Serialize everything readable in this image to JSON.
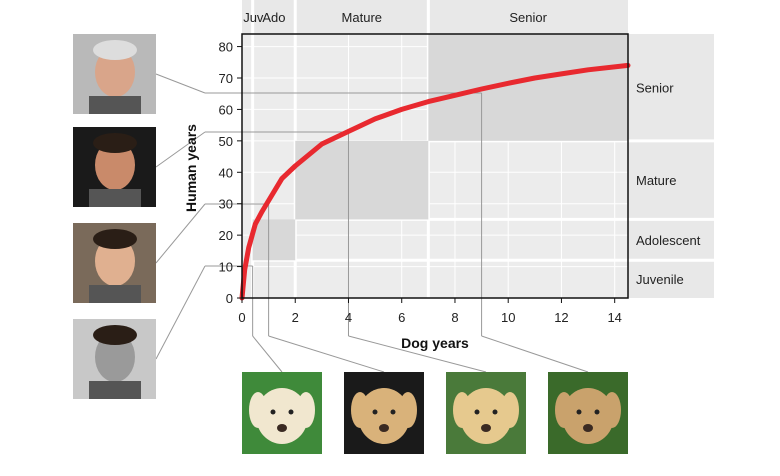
{
  "chart_data": {
    "type": "line",
    "xlabel": "Dog years",
    "ylabel": "Human years",
    "xlim": [
      0,
      14.5
    ],
    "ylim": [
      0,
      84
    ],
    "x_ticks": [
      0,
      2,
      4,
      6,
      8,
      10,
      12,
      14
    ],
    "y_ticks": [
      0,
      10,
      20,
      30,
      40,
      50,
      60,
      70,
      80
    ],
    "grid": true,
    "series": [
      {
        "color": "#e8292f",
        "x": [
          0,
          0.1,
          0.25,
          0.5,
          0.75,
          1,
          1.5,
          2,
          3,
          4,
          5,
          6,
          7,
          8,
          9,
          10,
          11,
          12,
          13,
          14.5
        ],
        "y": [
          0,
          9,
          16,
          23.5,
          27.5,
          31,
          38,
          42,
          49,
          53,
          57,
          60,
          62.5,
          64.5,
          66.5,
          68.3,
          70,
          71.3,
          72.6,
          74
        ]
      }
    ],
    "stages": [
      {
        "top_label": "Juv",
        "side_label": "Juvenile",
        "x_range": [
          0,
          0.4
        ],
        "y_range": [
          0,
          12
        ]
      },
      {
        "top_label": "Ado",
        "side_label": "Adolescent",
        "x_range": [
          0.4,
          2
        ],
        "y_range": [
          12,
          25
        ]
      },
      {
        "top_label": "Mature",
        "side_label": "Mature",
        "x_range": [
          2,
          7
        ],
        "y_range": [
          25,
          50
        ]
      },
      {
        "top_label": "Senior",
        "side_label": "Senior",
        "x_range": [
          7,
          14.5
        ],
        "y_range": [
          50,
          84
        ]
      }
    ],
    "highlights": [
      {
        "x": 0.4,
        "y": 12
      },
      {
        "x": 1,
        "y": 31
      },
      {
        "x": 4,
        "y": 53
      },
      {
        "x": 9,
        "y": 66.5
      }
    ]
  },
  "photos": {
    "human": [
      {
        "name": "human-photo-senior",
        "bg": "#b9b9b9",
        "skin": "#d9a58a"
      },
      {
        "name": "human-photo-mature",
        "bg": "#1a1a1a",
        "skin": "#c98a6a"
      },
      {
        "name": "human-photo-adolescent",
        "bg": "#7a6a5a",
        "skin": "#e0b090"
      },
      {
        "name": "human-photo-juvenile",
        "bg": "#c8c8c8",
        "skin": "#9a9a9a"
      }
    ],
    "dog": [
      {
        "name": "dog-photo-puppy",
        "bg": "#3f8a3a",
        "fur": "#f1e7cf"
      },
      {
        "name": "dog-photo-young",
        "bg": "#1a1a1a",
        "fur": "#d9b27a"
      },
      {
        "name": "dog-photo-adult",
        "bg": "#4a7a3a",
        "fur": "#e6c98e"
      },
      {
        "name": "dog-photo-old",
        "bg": "#3a6a2a",
        "fur": "#c9a26c"
      }
    ]
  }
}
